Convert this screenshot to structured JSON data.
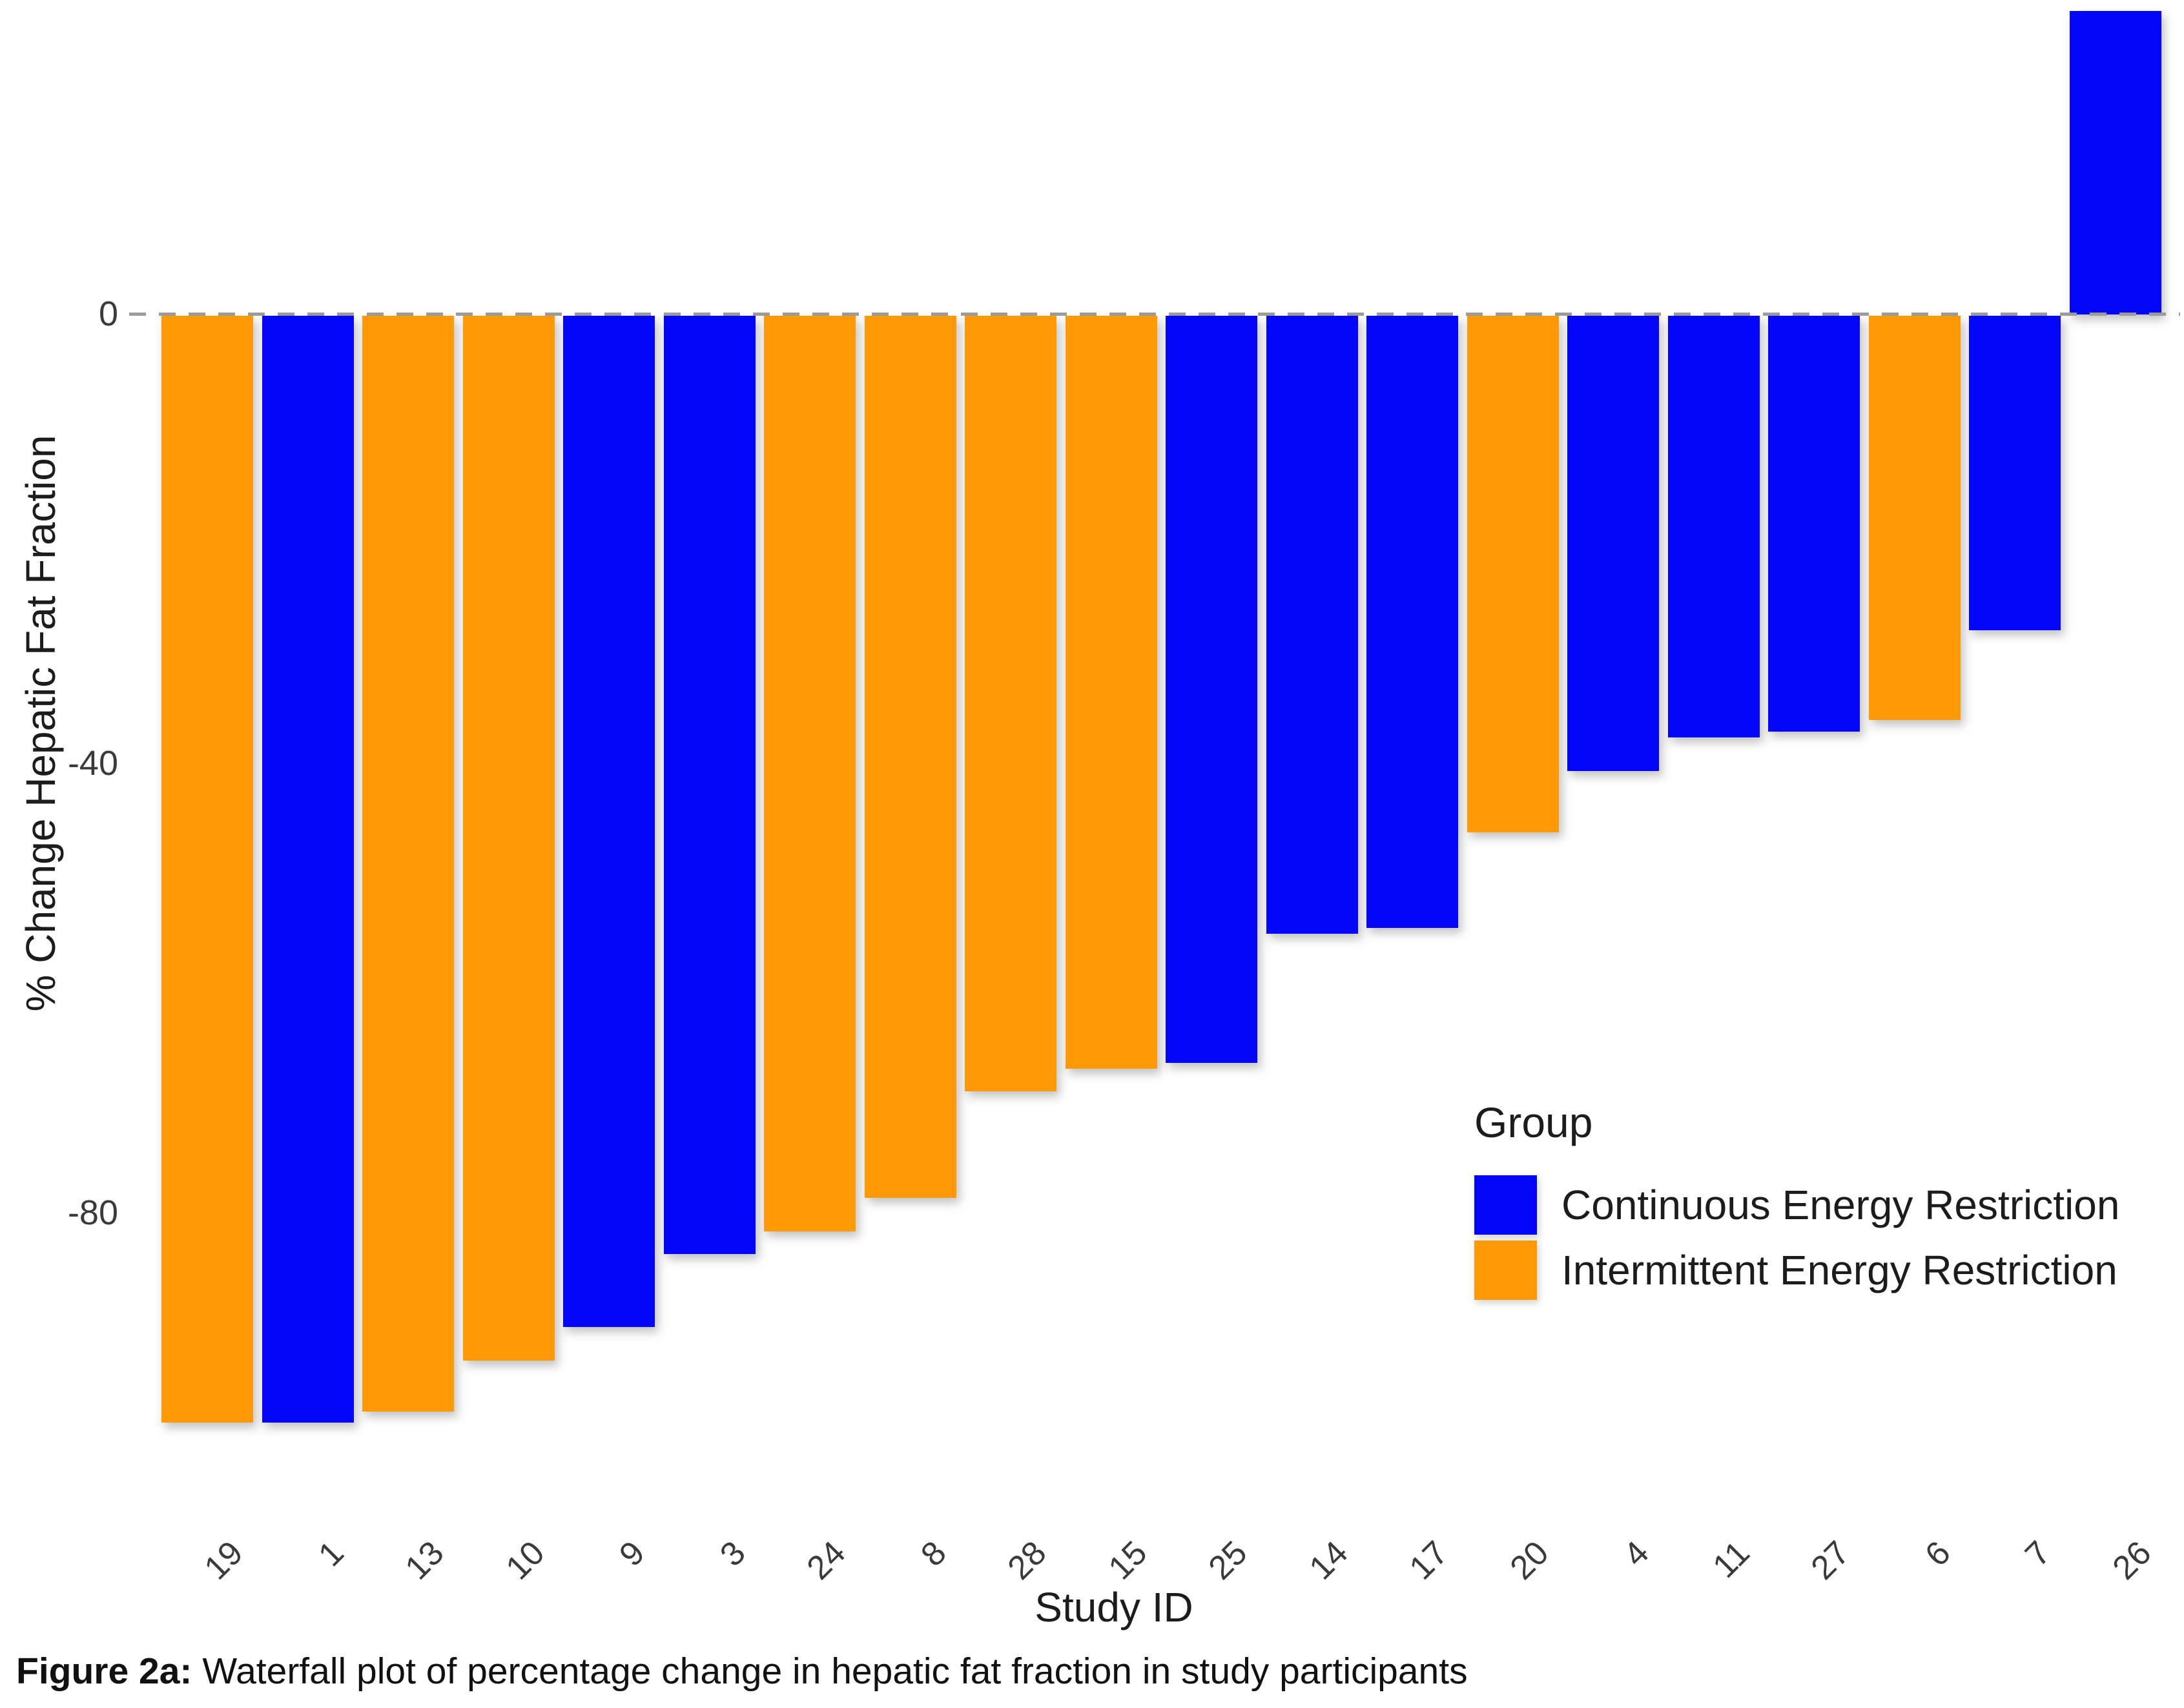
{
  "figure": {
    "caption_label": "Figure 2a:",
    "caption_text": "Waterfall plot of percentage change in hepatic fat fraction in study participants"
  },
  "chart_data": {
    "type": "bar",
    "title": "",
    "xlabel": "Study ID",
    "ylabel": "% Change Hepatic Fat Fraction",
    "ylim": [
      -105,
      30
    ],
    "ytick_labels": [
      "0",
      "-40",
      "-80"
    ],
    "ytick_values": [
      0,
      -40,
      -80
    ],
    "grid": "none",
    "zero_line_style": "dashed gray horizontal line at y=0",
    "x_tick_rotation_deg": 45,
    "categories": [
      "19",
      "1",
      "13",
      "10",
      "9",
      "3",
      "24",
      "8",
      "28",
      "15",
      "25",
      "14",
      "17",
      "20",
      "4",
      "11",
      "27",
      "6",
      "7",
      "26"
    ],
    "values": [
      -98.5,
      -98.5,
      -97.5,
      -93,
      -90,
      -83.5,
      -81.5,
      -78.5,
      -69,
      -67,
      -66.5,
      -55,
      -54.5,
      -46,
      -40.5,
      -37.5,
      -37,
      -36,
      -28,
      27
    ],
    "groups": [
      "intermittent",
      "continuous",
      "intermittent",
      "intermittent",
      "continuous",
      "continuous",
      "intermittent",
      "intermittent",
      "intermittent",
      "intermittent",
      "continuous",
      "continuous",
      "continuous",
      "intermittent",
      "continuous",
      "continuous",
      "continuous",
      "intermittent",
      "continuous",
      "continuous"
    ],
    "legend": {
      "title": "Group",
      "position": "right-center",
      "entries": [
        {
          "key": "continuous",
          "label": "Continuous Energy Restriction",
          "color": "#0505fa"
        },
        {
          "key": "intermittent",
          "label": "Intermittent Energy Restriction",
          "color": "#ff9905"
        }
      ]
    }
  },
  "colors": {
    "continuous": "#0505fa",
    "intermittent": "#ff9905",
    "zero_line": "#9b9b9b",
    "tick_text": "#3a3a3a",
    "axis_title_text": "#1c1c1c",
    "caption_text": "#111111",
    "background": "#ffffff"
  }
}
